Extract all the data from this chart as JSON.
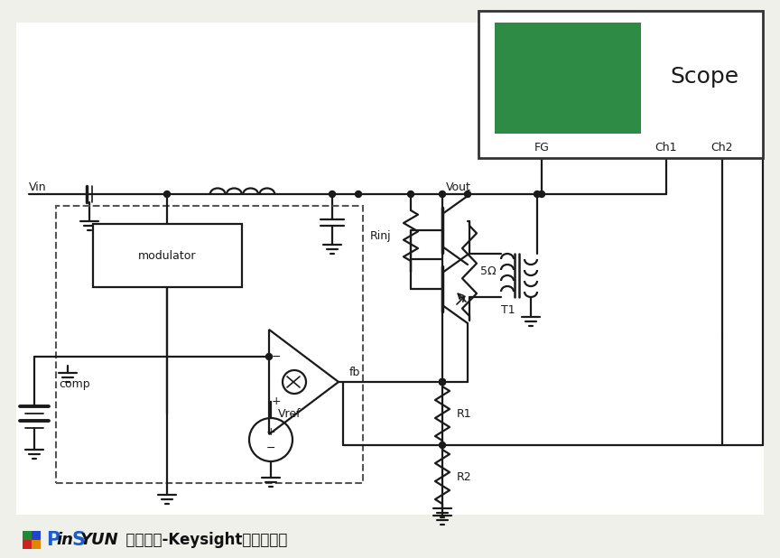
{
  "bg_color": "#f0f0eb",
  "white": "#ffffff",
  "line_color": "#1a1a1a",
  "scope_green": "#2e8b45",
  "scope_border": "#333333",
  "dashed_box_color": "#555555",
  "scope_label": "Scope",
  "modulator_label": "modulator",
  "comp_label": "comp",
  "vref_label": "Vref",
  "fb_label": "fb",
  "vin_label": "Vin",
  "vout_label": "Vout",
  "rinj_label": "Rinj",
  "r1_label": "R1",
  "r2_label": "R2",
  "t1_label": "T1",
  "five_ohm_label": "5Ω",
  "lw": 1.6,
  "lw2": 2.2
}
